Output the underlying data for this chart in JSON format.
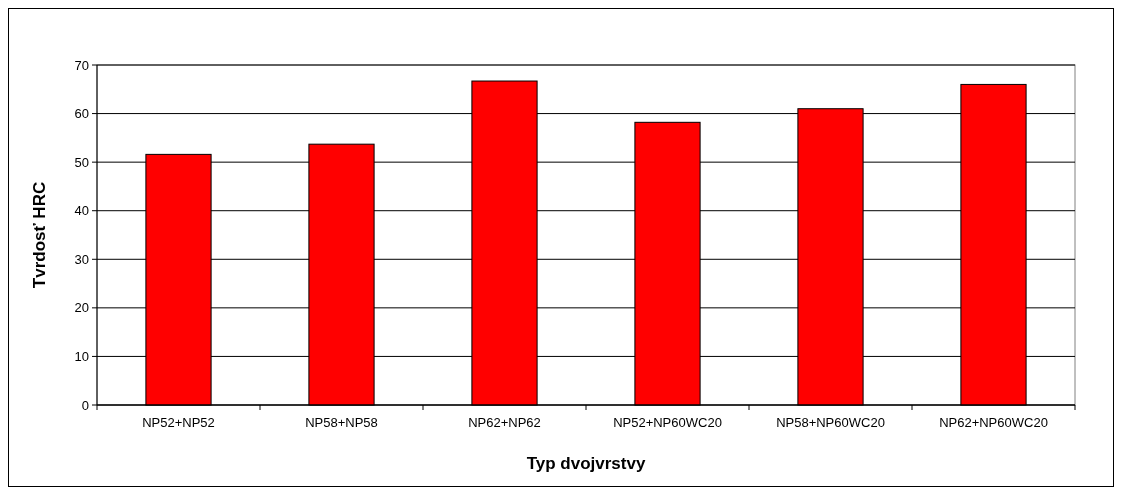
{
  "chart_data": {
    "type": "bar",
    "xlabel": "Typ dvojvrstvy",
    "ylabel": "Tvrdosť HRC",
    "categories": [
      "NP52+NP52",
      "NP58+NP58",
      "NP62+NP62",
      "NP52+NP60WC20",
      "NP58+NP60WC20",
      "NP62+NP60WC20"
    ],
    "values": [
      51.6,
      53.7,
      66.7,
      58.2,
      61.0,
      66.0
    ],
    "color": "#ff0000",
    "ylim": [
      0,
      70
    ],
    "yticks": [
      0,
      10,
      20,
      30,
      40,
      50,
      60,
      70
    ],
    "grid": "y"
  }
}
